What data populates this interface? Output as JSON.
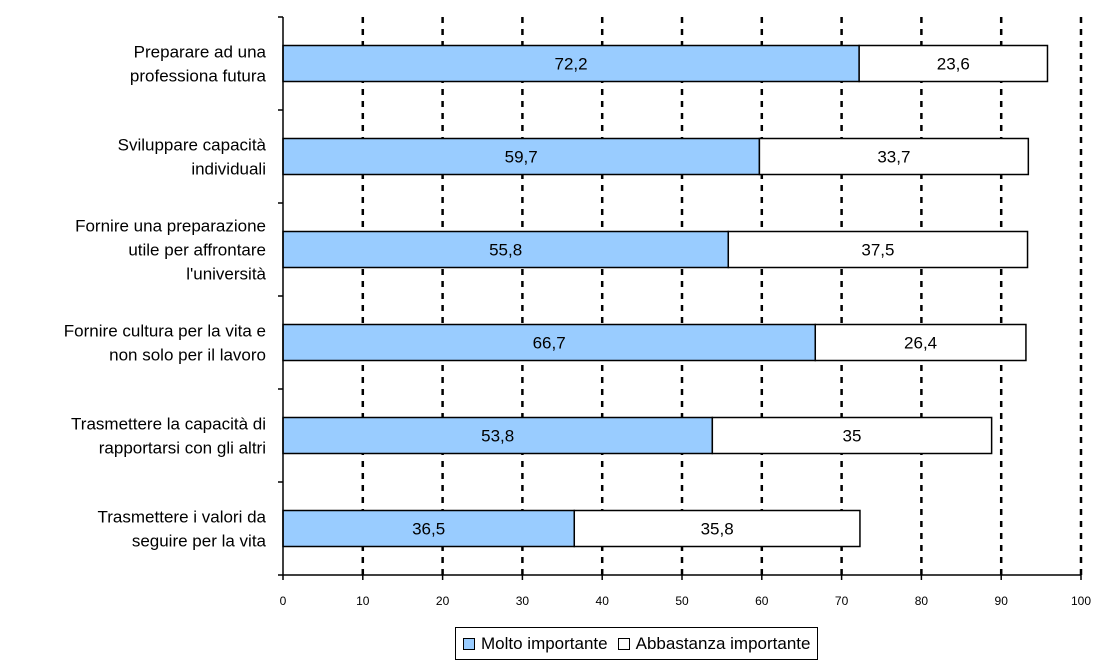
{
  "chart_data": {
    "type": "bar",
    "orientation": "horizontal",
    "stacked": true,
    "categories": [
      [
        "Preparare ad una",
        "professiona futura"
      ],
      [
        "Sviluppare capacità",
        "individuali"
      ],
      [
        "Fornire una preparazione",
        "utile per affrontare",
        "l'università"
      ],
      [
        "Fornire cultura per la vita e",
        "non solo per il lavoro"
      ],
      [
        "Trasmettere la capacità di",
        "rapportarsi con gli altri"
      ],
      [
        "Trasmettere i valori da",
        "seguire per la vita"
      ]
    ],
    "series": [
      {
        "name": "Molto importante",
        "color": "#99ccff",
        "values": [
          72.2,
          59.7,
          55.8,
          66.7,
          53.8,
          36.5
        ],
        "labels": [
          "72,2",
          "59,7",
          "55,8",
          "66,7",
          "53,8",
          "36,5"
        ]
      },
      {
        "name": "Abbastanza importante",
        "color": "#ffffff",
        "values": [
          23.6,
          33.7,
          37.5,
          26.4,
          35,
          35.8
        ],
        "labels": [
          "23,6",
          "33,7",
          "37,5",
          "26,4",
          "35",
          "35,8"
        ]
      }
    ],
    "xlim": [
      0,
      100
    ],
    "xticks": [
      0,
      10,
      20,
      30,
      40,
      50,
      60,
      70,
      80,
      90,
      100
    ],
    "grid": "vertical dashed",
    "legend_position": "bottom"
  }
}
